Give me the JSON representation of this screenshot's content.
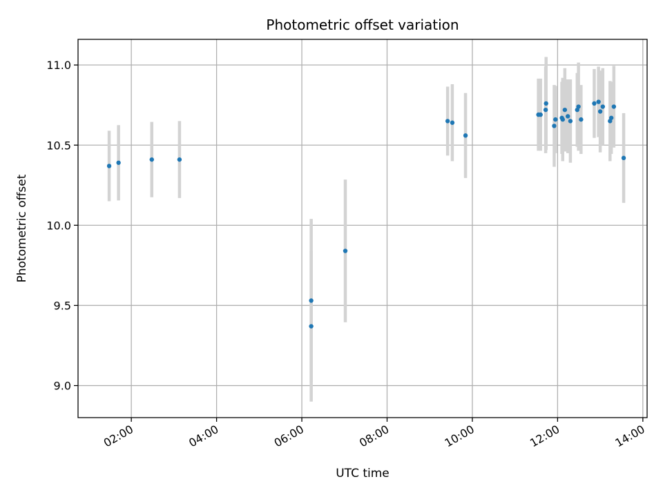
{
  "chart_data": {
    "type": "scatter",
    "title": "Photometric offset variation",
    "xlabel": "UTC time",
    "ylabel": "Photometric offset",
    "x_unit": "hours (UTC)",
    "xlim": [
      0.75,
      14.1
    ],
    "ylim": [
      8.8,
      11.16
    ],
    "x_ticks": [
      {
        "value": 2,
        "label": "02:00"
      },
      {
        "value": 4,
        "label": "04:00"
      },
      {
        "value": 6,
        "label": "06:00"
      },
      {
        "value": 8,
        "label": "08:00"
      },
      {
        "value": 10,
        "label": "10:00"
      },
      {
        "value": 12,
        "label": "12:00"
      },
      {
        "value": 14,
        "label": "14:00"
      }
    ],
    "y_ticks": [
      {
        "value": 9.0,
        "label": "9.0"
      },
      {
        "value": 9.5,
        "label": "9.5"
      },
      {
        "value": 10.0,
        "label": "10.0"
      },
      {
        "value": 10.5,
        "label": "10.5"
      },
      {
        "value": 11.0,
        "label": "11.0"
      }
    ],
    "grid": true,
    "colors": {
      "marker": "#1f77b4",
      "errorbar": "#d3d3d3",
      "grid": "#b0b0b0"
    },
    "points": [
      {
        "x": 1.48,
        "y": 10.37,
        "err": 0.22
      },
      {
        "x": 1.7,
        "y": 10.39,
        "err": 0.235
      },
      {
        "x": 2.48,
        "y": 10.41,
        "err": 0.235
      },
      {
        "x": 3.13,
        "y": 10.41,
        "err": 0.24
      },
      {
        "x": 6.22,
        "y": 9.53,
        "err": 0.51
      },
      {
        "x": 6.22,
        "y": 9.37,
        "err": 0.47
      },
      {
        "x": 7.02,
        "y": 9.84,
        "err": 0.445
      },
      {
        "x": 9.42,
        "y": 10.65,
        "err": 0.215
      },
      {
        "x": 9.53,
        "y": 10.64,
        "err": 0.24
      },
      {
        "x": 9.84,
        "y": 10.56,
        "err": 0.265
      },
      {
        "x": 11.55,
        "y": 10.69,
        "err": 0.225
      },
      {
        "x": 11.6,
        "y": 10.69,
        "err": 0.225
      },
      {
        "x": 11.72,
        "y": 10.72,
        "err": 0.27
      },
      {
        "x": 11.73,
        "y": 10.76,
        "err": 0.29
      },
      {
        "x": 11.92,
        "y": 10.62,
        "err": 0.255
      },
      {
        "x": 11.95,
        "y": 10.66,
        "err": 0.21
      },
      {
        "x": 12.1,
        "y": 10.67,
        "err": 0.225
      },
      {
        "x": 12.12,
        "y": 10.66,
        "err": 0.26
      },
      {
        "x": 12.17,
        "y": 10.72,
        "err": 0.26
      },
      {
        "x": 12.24,
        "y": 10.68,
        "err": 0.23
      },
      {
        "x": 12.3,
        "y": 10.65,
        "err": 0.26
      },
      {
        "x": 12.46,
        "y": 10.72,
        "err": 0.23
      },
      {
        "x": 12.49,
        "y": 10.74,
        "err": 0.275
      },
      {
        "x": 12.55,
        "y": 10.66,
        "err": 0.215
      },
      {
        "x": 12.86,
        "y": 10.76,
        "err": 0.215
      },
      {
        "x": 12.96,
        "y": 10.77,
        "err": 0.22
      },
      {
        "x": 13.0,
        "y": 10.71,
        "err": 0.255
      },
      {
        "x": 13.06,
        "y": 10.74,
        "err": 0.24
      },
      {
        "x": 13.23,
        "y": 10.65,
        "err": 0.25
      },
      {
        "x": 13.26,
        "y": 10.67,
        "err": 0.225
      },
      {
        "x": 13.32,
        "y": 10.74,
        "err": 0.255
      },
      {
        "x": 13.55,
        "y": 10.42,
        "err": 0.28
      }
    ]
  }
}
